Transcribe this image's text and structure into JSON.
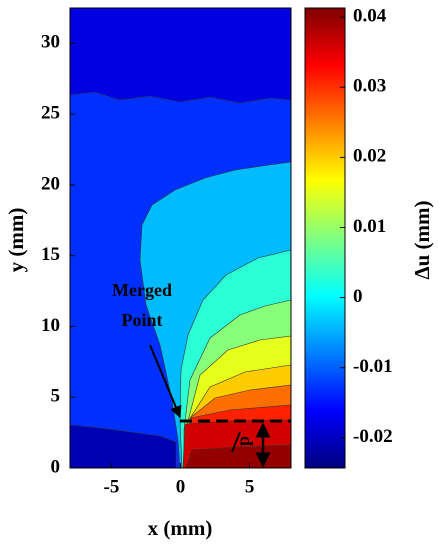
{
  "chart_data": {
    "type": "contour",
    "xlabel": "x (mm)",
    "ylabel": "y (mm)",
    "colorbar_label": "Δu (mm)",
    "xlim": [
      -8,
      8
    ],
    "ylim": [
      0,
      32.5
    ],
    "xticks": [
      -5,
      0,
      5
    ],
    "yticks": [
      0,
      5,
      10,
      15,
      20,
      25,
      30
    ],
    "colormap": "jet",
    "clim": [
      -0.0243,
      0.0413
    ],
    "cticks": [
      0.04,
      0.03,
      0.02,
      0.01,
      0,
      -0.01,
      -0.02
    ],
    "levels": [
      -0.018,
      -0.013,
      -0.021,
      -0.004,
      0.003,
      0.009,
      0.015,
      0.02,
      0.026,
      0.031,
      0.036,
      0.04
    ],
    "merged_point_label": [
      "Merged",
      "Point"
    ],
    "gap_label": "p"
  }
}
